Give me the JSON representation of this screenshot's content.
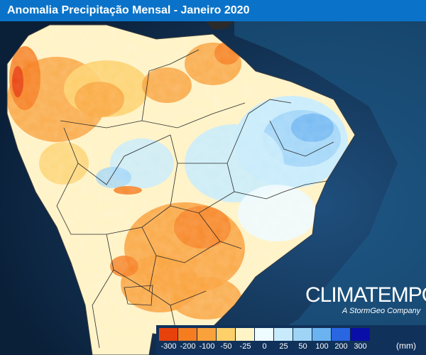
{
  "title": "Anomalia Precipitação Mensal - Janeiro 2020",
  "brand": {
    "name": "CLIMATEMPO",
    "tagline": "A StormGeo Company"
  },
  "legend": {
    "unit": "(mm)",
    "classes": [
      {
        "label": "-300",
        "color": "#e8420c"
      },
      {
        "label": "-200",
        "color": "#f57d1f"
      },
      {
        "label": "-100",
        "color": "#f9a13a"
      },
      {
        "label": "-50",
        "color": "#fdd06a"
      },
      {
        "label": "-25",
        "color": "#fff4c6"
      },
      {
        "label": "0",
        "color": "#eefbff"
      },
      {
        "label": "25",
        "color": "#c7ebfb"
      },
      {
        "label": "50",
        "color": "#9fd4f7"
      },
      {
        "label": "100",
        "color": "#6ab3f0"
      },
      {
        "label": "200",
        "color": "#2966e2"
      },
      {
        "label": "300",
        "color": "#0a0ea8"
      }
    ]
  },
  "colors": {
    "title_bar": "#0a73c9",
    "ocean": "#0c2a4c",
    "border_lines": "#2b2b2b"
  }
}
